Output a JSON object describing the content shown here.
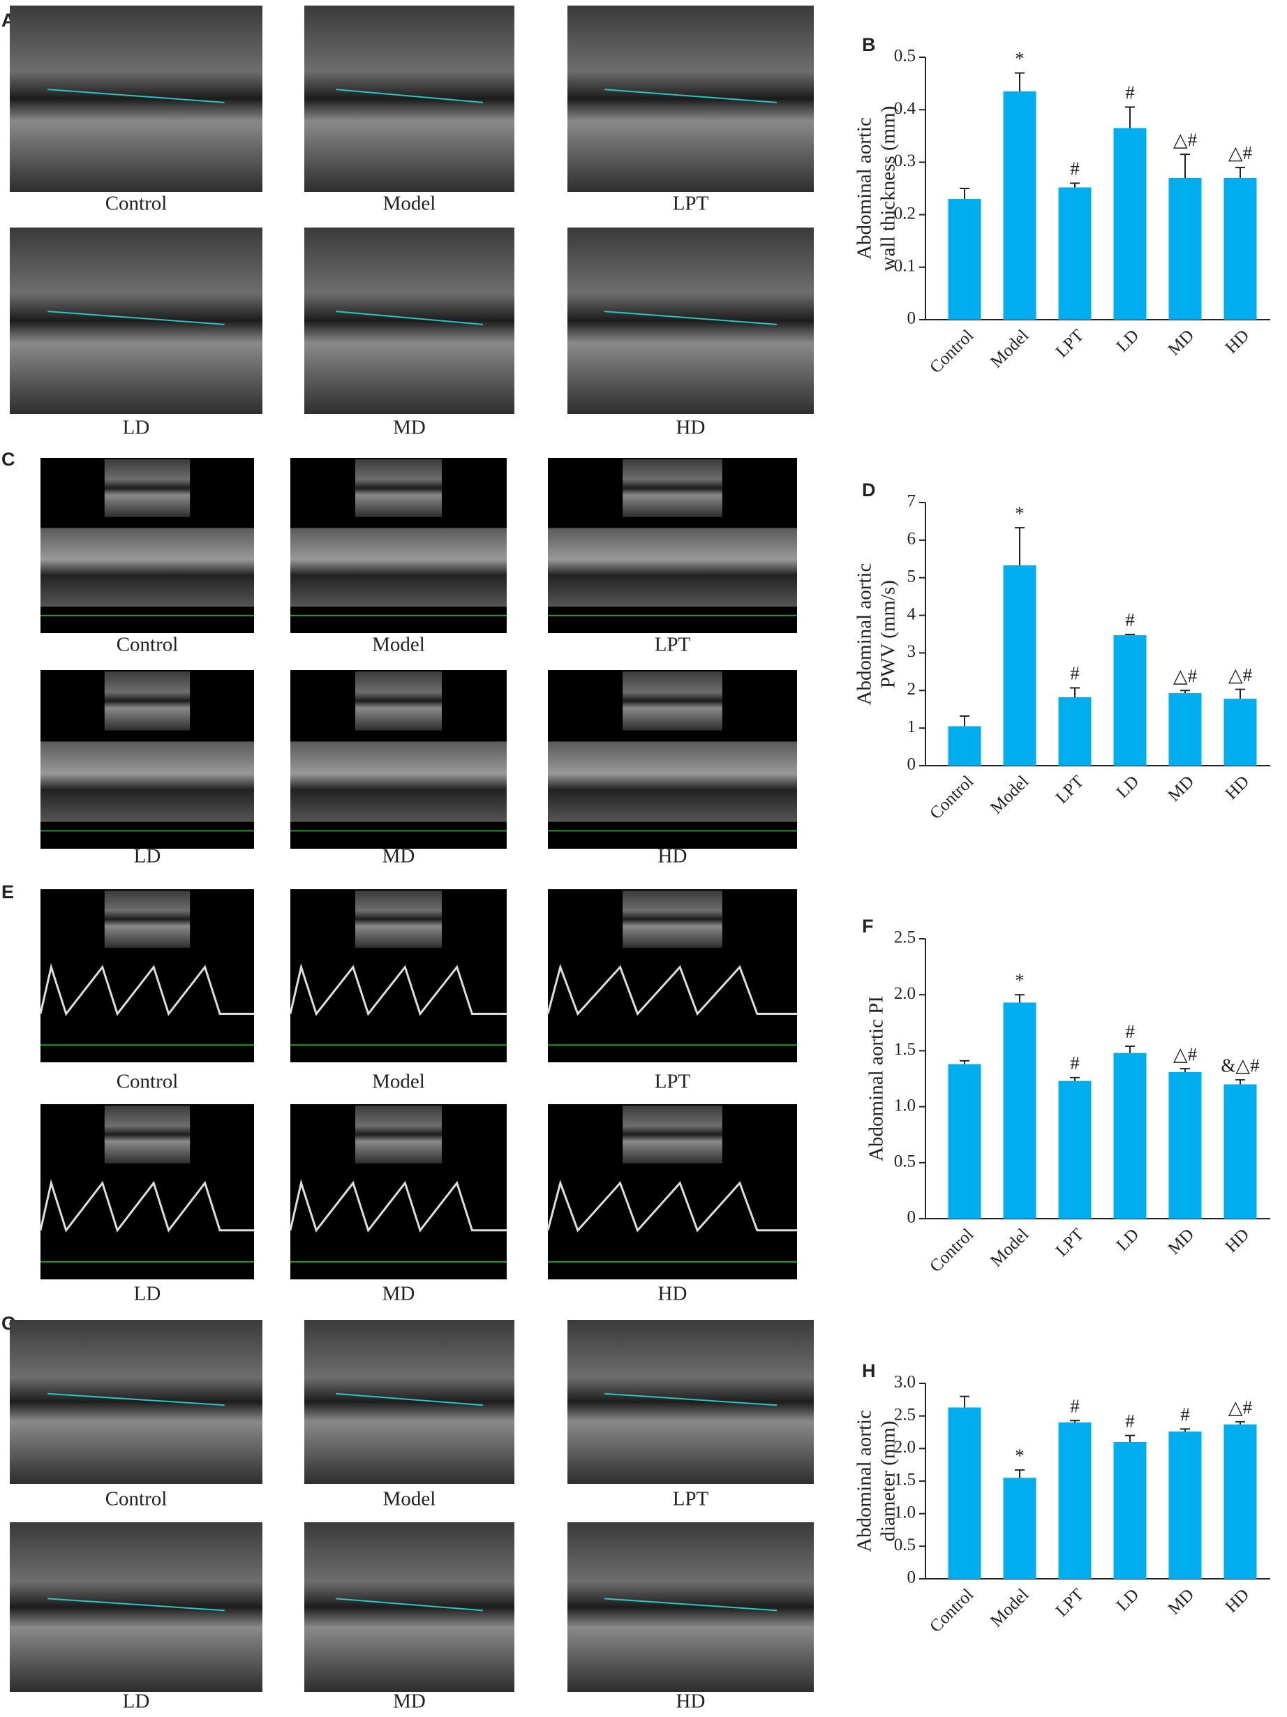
{
  "image_panels": [
    {
      "label": "A",
      "captions": [
        "Control",
        "Model",
        "LPT",
        "LD",
        "MD",
        "HD"
      ]
    },
    {
      "label": "C",
      "captions": [
        "Control",
        "Model",
        "LPT",
        "LD",
        "MD",
        "HD"
      ]
    },
    {
      "label": "E",
      "captions": [
        "Control",
        "Model",
        "LPT",
        "LD",
        "MD",
        "HD"
      ]
    },
    {
      "label": "G",
      "captions": [
        "Control",
        "Model",
        "LPT",
        "LD",
        "MD",
        "HD"
      ]
    }
  ],
  "chart_data": [
    {
      "type": "bar",
      "panel": "B",
      "y_label": [
        "Abdominal aortic",
        "wall thickness (mm)"
      ],
      "categories": [
        "Control",
        "Model",
        "LPT",
        "LD",
        "MD",
        "HD"
      ],
      "values": [
        0.23,
        0.435,
        0.252,
        0.365,
        0.27,
        0.27
      ],
      "errors": [
        0.02,
        0.035,
        0.008,
        0.04,
        0.045,
        0.02
      ],
      "annotations": [
        null,
        "*",
        "#",
        "#",
        "△#",
        "△#"
      ],
      "color": "#00aeef",
      "ylim": [
        0,
        0.5
      ],
      "yticks": [
        0,
        0.1,
        0.2,
        0.3,
        0.4,
        0.5
      ]
    },
    {
      "type": "bar",
      "panel": "D",
      "y_label": [
        "Abdominal aortic",
        "PWV (mm/s)"
      ],
      "categories": [
        "Control",
        "Model",
        "LPT",
        "LD",
        "MD",
        "HD"
      ],
      "values": [
        1.05,
        5.33,
        1.82,
        3.47,
        1.93,
        1.78
      ],
      "errors": [
        0.27,
        1.0,
        0.25,
        0.02,
        0.07,
        0.25
      ],
      "annotations": [
        null,
        "*",
        "#",
        "#",
        "△#",
        "△#"
      ],
      "color": "#00aeef",
      "ylim": [
        0,
        7
      ],
      "yticks": [
        0,
        1,
        2,
        3,
        4,
        5,
        6,
        7
      ]
    },
    {
      "type": "bar",
      "panel": "F",
      "y_label": [
        "Abdominal aortic PI"
      ],
      "categories": [
        "Control",
        "Model",
        "LPT",
        "LD",
        "MD",
        "HD"
      ],
      "values": [
        1.38,
        1.93,
        1.23,
        1.48,
        1.31,
        1.2
      ],
      "errors": [
        0.03,
        0.07,
        0.03,
        0.06,
        0.03,
        0.04
      ],
      "annotations": [
        null,
        "*",
        "#",
        "#",
        "△#",
        "&△#"
      ],
      "color": "#00aeef",
      "ylim": [
        0,
        2.5
      ],
      "yticks": [
        0,
        0.5,
        {
          "value": 1,
          "label": "1.0"
        },
        1.5,
        {
          "value": 2,
          "label": "2.0"
        },
        2.5
      ]
    },
    {
      "type": "bar",
      "panel": "H",
      "y_label": [
        "Abdominal aortic",
        "diameter (mm)"
      ],
      "categories": [
        "Control",
        "Model",
        "LPT",
        "LD",
        "MD",
        "HD"
      ],
      "values": [
        2.63,
        1.55,
        2.4,
        2.1,
        2.26,
        2.37
      ],
      "errors": [
        0.17,
        0.12,
        0.03,
        0.1,
        0.04,
        0.04
      ],
      "annotations": [
        null,
        "*",
        "#",
        "#",
        "#",
        "△#"
      ],
      "color": "#00aeef",
      "ylim": [
        0,
        3
      ],
      "yticks": [
        0,
        0.5,
        {
          "value": 1,
          "label": "1.0"
        },
        1.5,
        {
          "value": 2,
          "label": "2.0"
        },
        2.5,
        {
          "value": 3,
          "label": "3.0"
        }
      ]
    }
  ]
}
